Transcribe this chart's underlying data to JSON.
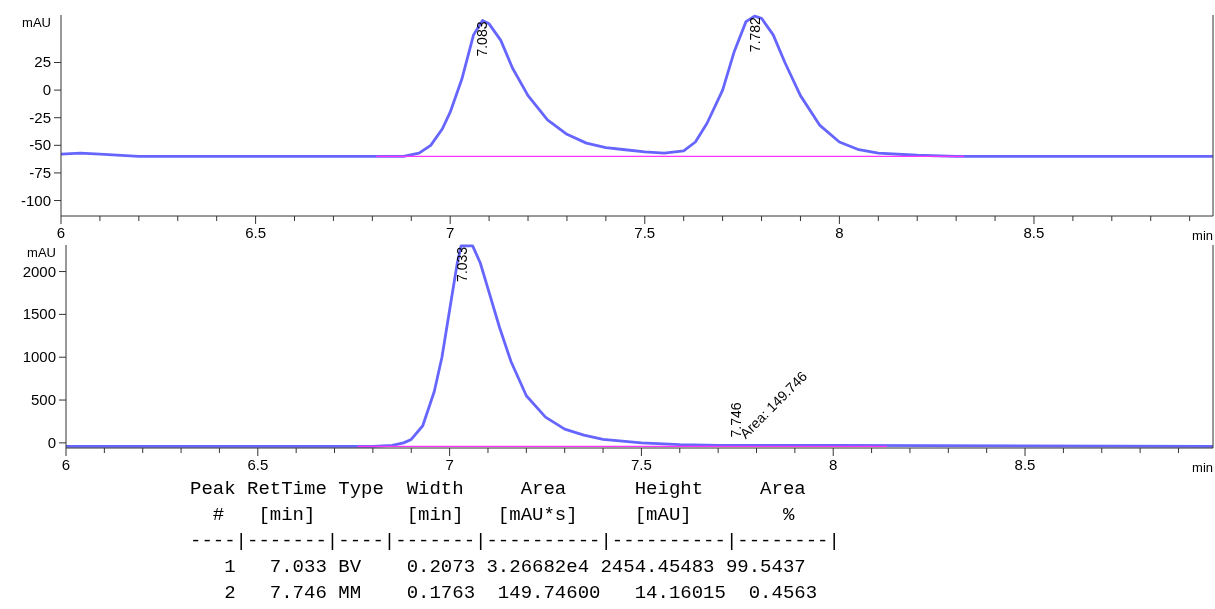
{
  "chart_data": [
    {
      "type": "line",
      "xlabel": "min",
      "ylabel": "mAU",
      "xlim": [
        6,
        8.96
      ],
      "ylim": [
        -114,
        68
      ],
      "xticks": [
        6,
        {
          "value": 6.1,
          "label": null
        },
        {
          "value": 6.2,
          "label": null
        },
        {
          "value": 6.3,
          "label": null
        },
        {
          "value": 6.4,
          "label": null
        },
        6.5,
        {
          "value": 6.6,
          "label": null
        },
        {
          "value": 6.7,
          "label": null
        },
        {
          "value": 6.8,
          "label": null
        },
        {
          "value": 6.9,
          "label": null
        },
        7,
        {
          "value": 7.1,
          "label": null
        },
        {
          "value": 7.2,
          "label": null
        },
        {
          "value": 7.3,
          "label": null
        },
        {
          "value": 7.4,
          "label": null
        },
        7.5,
        {
          "value": 7.6,
          "label": null
        },
        {
          "value": 7.7,
          "label": null
        },
        {
          "value": 7.8,
          "label": null
        },
        {
          "value": 7.9,
          "label": null
        },
        8,
        {
          "value": 8.1,
          "label": null
        },
        {
          "value": 8.2,
          "label": null
        },
        {
          "value": 8.3,
          "label": null
        },
        {
          "value": 8.4,
          "label": null
        },
        8.5,
        {
          "value": 8.6,
          "label": null
        },
        {
          "value": 8.7,
          "label": null
        },
        {
          "value": 8.8,
          "label": null
        },
        {
          "value": 8.9,
          "label": null
        }
      ],
      "yticks": [
        -100,
        -75,
        -50,
        -25,
        0,
        25
      ],
      "grid": false,
      "series": [
        {
          "color": "#6666ff",
          "x": [
            6.0,
            6.05,
            6.1,
            6.2,
            6.5,
            6.8,
            6.88,
            6.92,
            6.95,
            6.98,
            7.0,
            7.03,
            7.06,
            7.083,
            7.1,
            7.13,
            7.16,
            7.2,
            7.25,
            7.3,
            7.35,
            7.4,
            7.45,
            7.5,
            7.55,
            7.6,
            7.63,
            7.66,
            7.7,
            7.73,
            7.76,
            7.782,
            7.8,
            7.83,
            7.86,
            7.9,
            7.95,
            8.0,
            8.05,
            8.1,
            8.2,
            8.3,
            8.6,
            8.96
          ],
          "values": [
            -58,
            -57,
            -58,
            -60,
            -60,
            -60,
            -60,
            -57,
            -50,
            -35,
            -20,
            10,
            50,
            63,
            60,
            45,
            20,
            -5,
            -27,
            -40,
            -48,
            -52,
            -54,
            -56,
            -57,
            -55,
            -47,
            -30,
            0,
            35,
            62,
            67,
            65,
            50,
            25,
            -5,
            -32,
            -47,
            -54,
            -57,
            -59,
            -60,
            -60,
            -60
          ]
        },
        {
          "color": "#ff33ff",
          "x": [
            6.81,
            8.32
          ],
          "values": [
            -60,
            -60
          ]
        }
      ],
      "annotations": [
        {
          "text": "7.083",
          "x": 7.083,
          "y": 63
        },
        {
          "text": "7.782",
          "x": 7.782,
          "y": 67
        }
      ]
    },
    {
      "type": "line",
      "xlabel": "min",
      "ylabel": "mAU",
      "xlim": [
        6,
        8.99
      ],
      "ylim": [
        -60,
        2310
      ],
      "xticks": [
        6,
        {
          "value": 6.1,
          "label": null
        },
        {
          "value": 6.2,
          "label": null
        },
        {
          "value": 6.3,
          "label": null
        },
        {
          "value": 6.4,
          "label": null
        },
        6.5,
        {
          "value": 6.6,
          "label": null
        },
        {
          "value": 6.7,
          "label": null
        },
        {
          "value": 6.8,
          "label": null
        },
        {
          "value": 6.9,
          "label": null
        },
        7,
        {
          "value": 7.1,
          "label": null
        },
        {
          "value": 7.2,
          "label": null
        },
        {
          "value": 7.3,
          "label": null
        },
        {
          "value": 7.4,
          "label": null
        },
        7.5,
        {
          "value": 7.6,
          "label": null
        },
        {
          "value": 7.7,
          "label": null
        },
        {
          "value": 7.8,
          "label": null
        },
        {
          "value": 7.9,
          "label": null
        },
        8,
        {
          "value": 8.1,
          "label": null
        },
        {
          "value": 8.2,
          "label": null
        },
        {
          "value": 8.3,
          "label": null
        },
        {
          "value": 8.4,
          "label": null
        },
        8.5,
        {
          "value": 8.6,
          "label": null
        },
        {
          "value": 8.7,
          "label": null
        },
        {
          "value": 8.8,
          "label": null
        },
        {
          "value": 8.9,
          "label": null
        }
      ],
      "yticks": [
        0,
        500,
        1000,
        1500,
        2000
      ],
      "grid": false,
      "series": [
        {
          "color": "#6666ff",
          "x": [
            6.0,
            6.5,
            6.8,
            6.85,
            6.88,
            6.9,
            6.93,
            6.96,
            6.98,
            7.0,
            7.02,
            7.03,
            7.06,
            7.08,
            7.1,
            7.13,
            7.16,
            7.2,
            7.25,
            7.3,
            7.35,
            7.4,
            7.5,
            7.6,
            7.7,
            7.8,
            8.0,
            8.99
          ],
          "values": [
            -40,
            -40,
            -40,
            -30,
            0,
            40,
            200,
            600,
            1000,
            1550,
            2100,
            2300,
            2300,
            2100,
            1800,
            1350,
            950,
            550,
            300,
            160,
            90,
            40,
            0,
            -20,
            -30,
            -30,
            -30,
            -40
          ]
        },
        {
          "color": "#ff33ff",
          "x": [
            6.76,
            8.14
          ],
          "values": [
            -40,
            -40
          ]
        }
      ],
      "annotations": [
        {
          "text": "7.033",
          "x": 7.033,
          "y": 2300
        },
        {
          "text": "7.746",
          "x": 7.746,
          "y": -30
        },
        {
          "text": "Area: 149.746",
          "x": 7.746,
          "y": -30
        },
        "Peak RetTime Type  Width     Area      Height     Area  ",
        "  #   [min]        [min]   [mAU*s]     [mAU]        %   ",
        "----|-------|----|-------|----------|----------|--------|",
        "   1   7.033 BV    0.2073 3.26682e4 2454.45483 99.5437",
        "   2   7.746 MM    0.1763  149.74600   14.16015  0.4563"
      ]
    }
  ]
}
